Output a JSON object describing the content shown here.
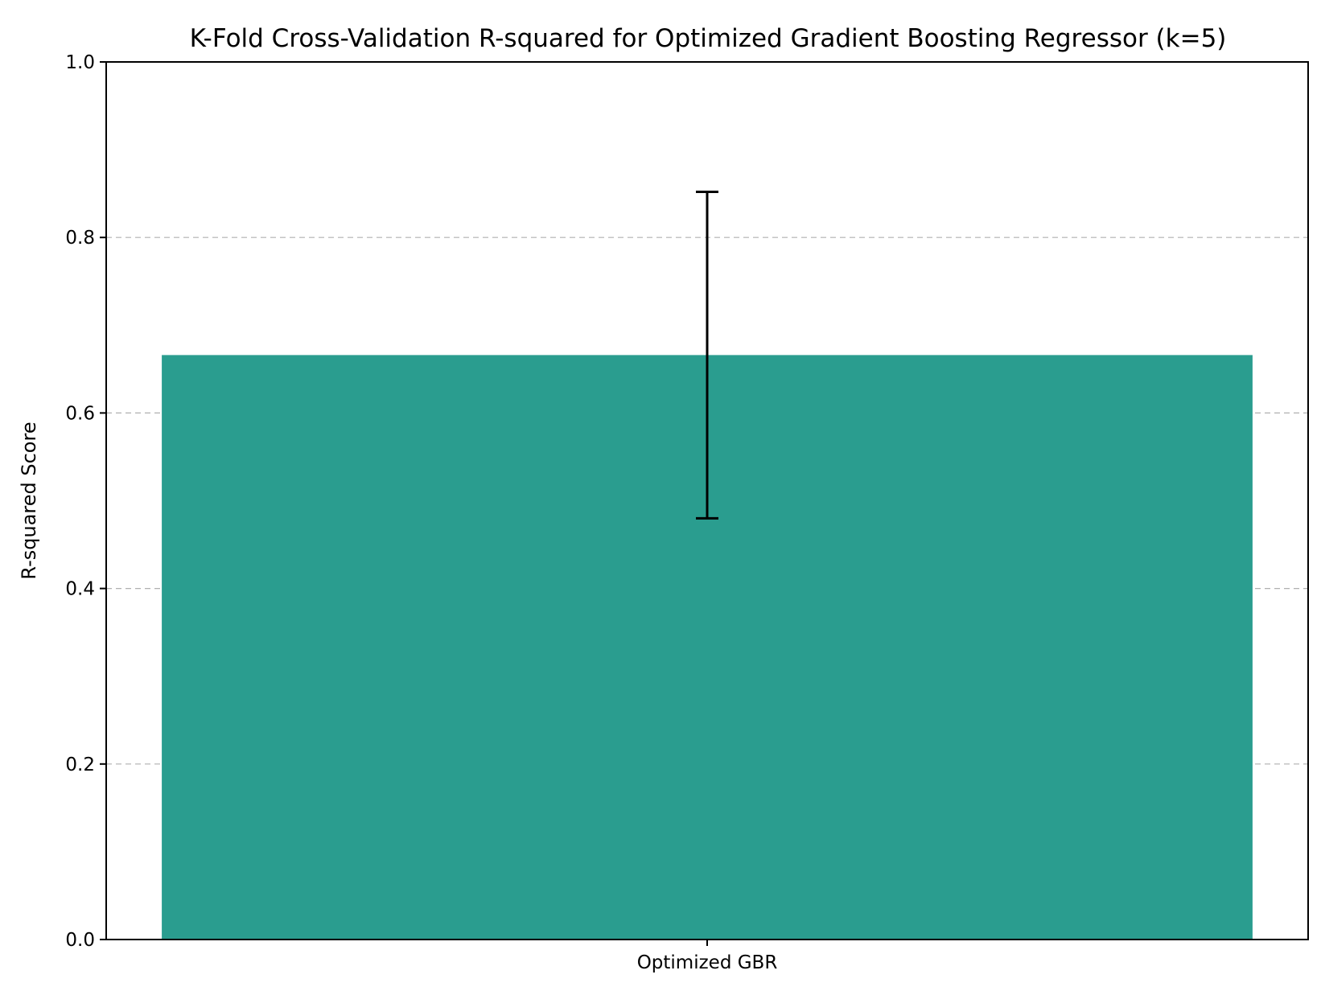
{
  "chart_data": {
    "type": "bar",
    "title": "K-Fold Cross-Validation R-squared for Optimized Gradient Boosting Regressor (k=5)",
    "xlabel": "",
    "ylabel": "R-squared Score",
    "categories": [
      "Optimized GBR"
    ],
    "values": [
      0.666
    ],
    "error": [
      0.186
    ],
    "ylim": [
      0.0,
      1.0
    ],
    "yticks": [
      0.0,
      0.2,
      0.4,
      0.6,
      0.8,
      1.0
    ],
    "ytick_labels": [
      "0.0",
      "0.2",
      "0.4",
      "0.6",
      "0.8",
      "1.0"
    ],
    "grid": "y-dashed",
    "bar_color": "#2a9d8f"
  }
}
